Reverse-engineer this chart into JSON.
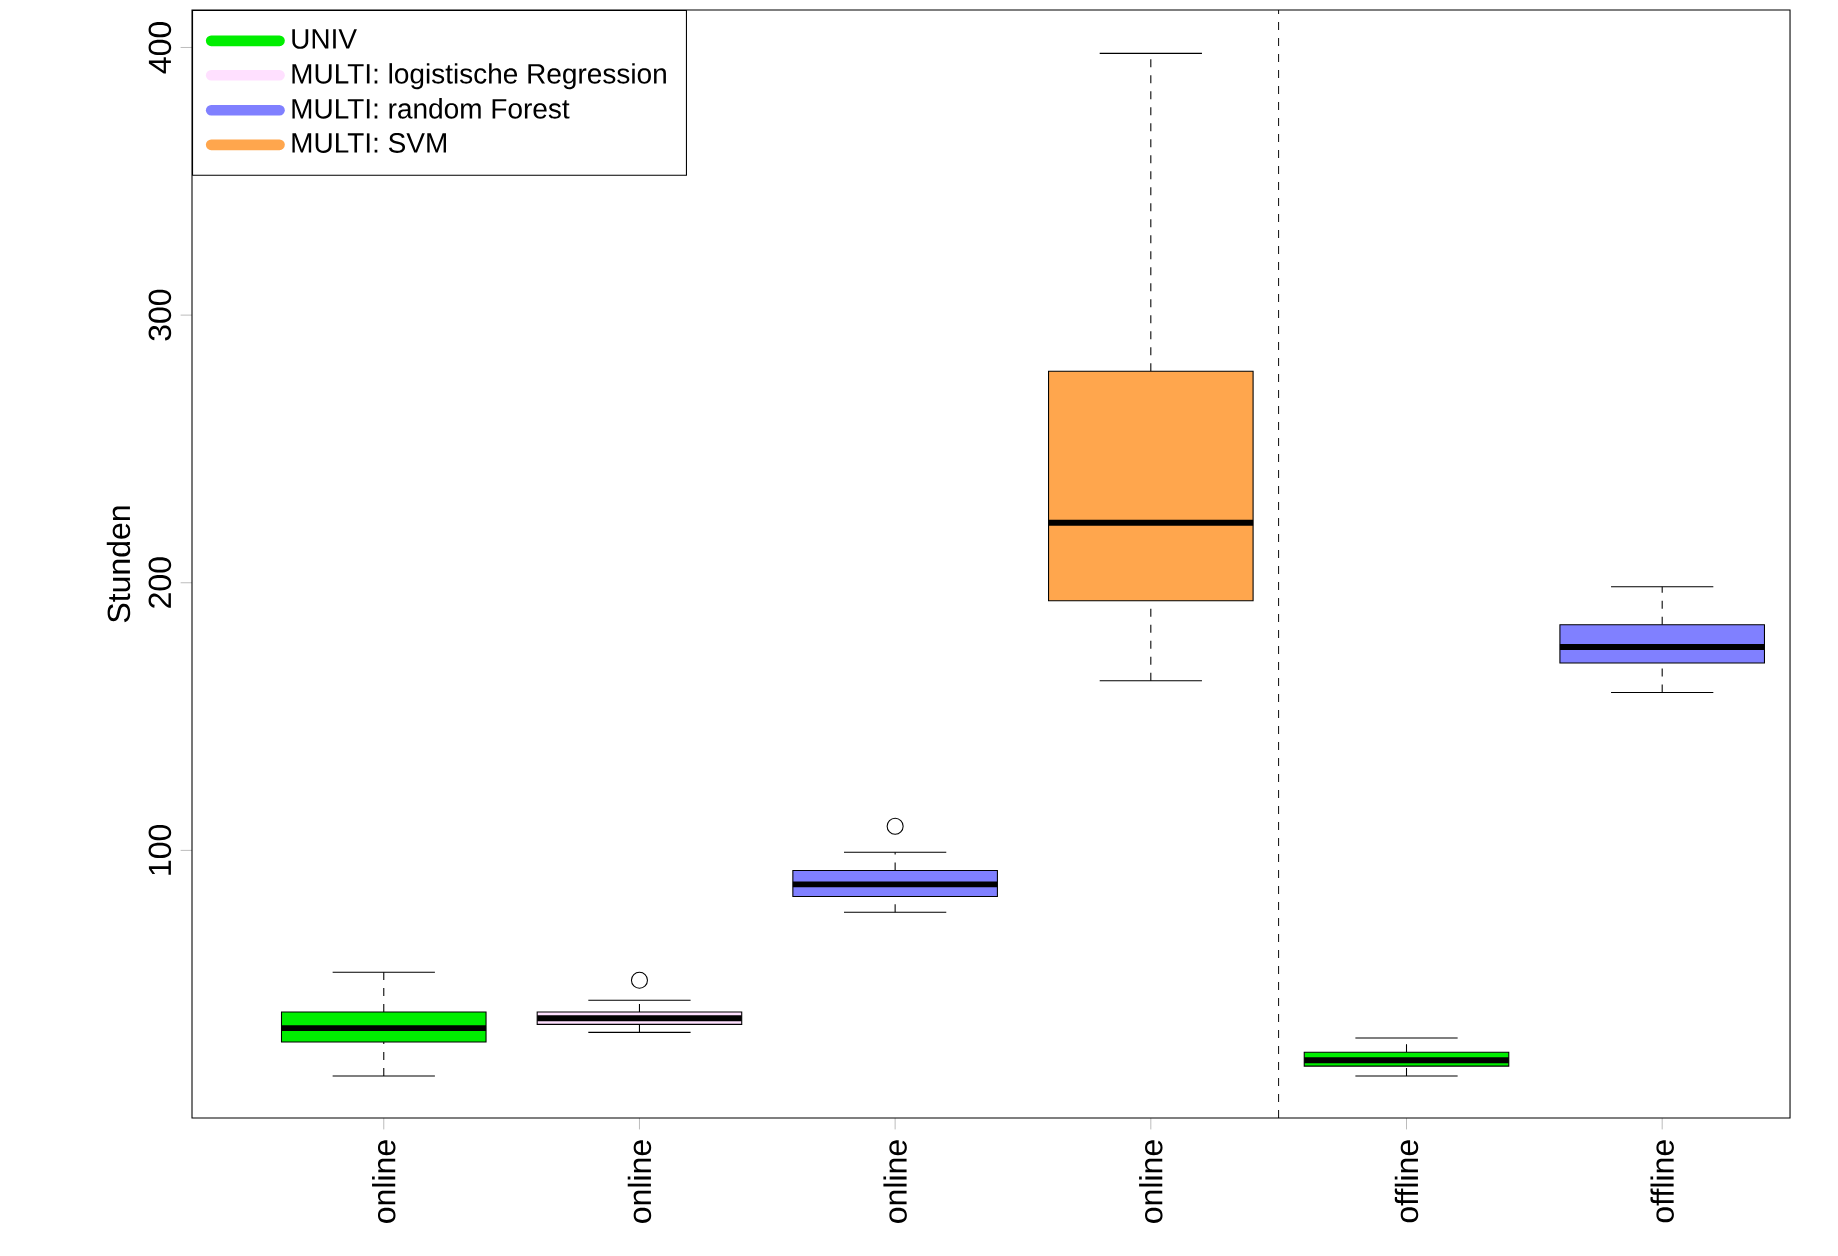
{
  "chart_data": {
    "type": "box",
    "ylabel": "Stunden",
    "categories": [
      "online",
      "online",
      "online",
      "online",
      "offline",
      "offline"
    ],
    "ylim": [
      0,
      414
    ],
    "yticks": [
      100,
      200,
      300,
      400
    ],
    "grid": false,
    "legend": "top left",
    "series": [
      {
        "name": "UNIV",
        "color": "#00ee00",
        "boxes": [
          {
            "low": 15.7,
            "q1": 28.4,
            "median": 33.6,
            "q3": 39.6,
            "high": 54.5
          },
          null,
          null,
          null,
          {
            "low": 15.7,
            "q1": 19.4,
            "median": 21.6,
            "q3": 24.6,
            "high": 29.9
          },
          null
        ]
      },
      {
        "name": "MULTI: logistische Regression",
        "color": "#ffe0ff",
        "boxes": [
          null,
          {
            "low": 32,
            "q1": 35,
            "median": 37.3,
            "q3": 39.6,
            "high": 44,
            "outliers": [
              51.5
            ]
          },
          null,
          null,
          null,
          null
        ]
      },
      {
        "name": "MULTI: random Forest",
        "color": "#8080ff",
        "boxes": [
          null,
          null,
          {
            "low": 76.9,
            "q1": 82.8,
            "median": 87.3,
            "q3": 92.5,
            "high": 99.3,
            "outliers": [
              109
            ]
          },
          null,
          null,
          {
            "low": 159,
            "q1": 170,
            "median": 176,
            "q3": 184.3,
            "high": 198.5
          }
        ]
      },
      {
        "name": "MULTI: SVM",
        "color": "#ffa64d",
        "boxes": [
          null,
          null,
          null,
          {
            "low": 163.4,
            "q1": 193.3,
            "median": 222.4,
            "q3": 279,
            "high": 397.8
          },
          null,
          null
        ]
      }
    ]
  }
}
